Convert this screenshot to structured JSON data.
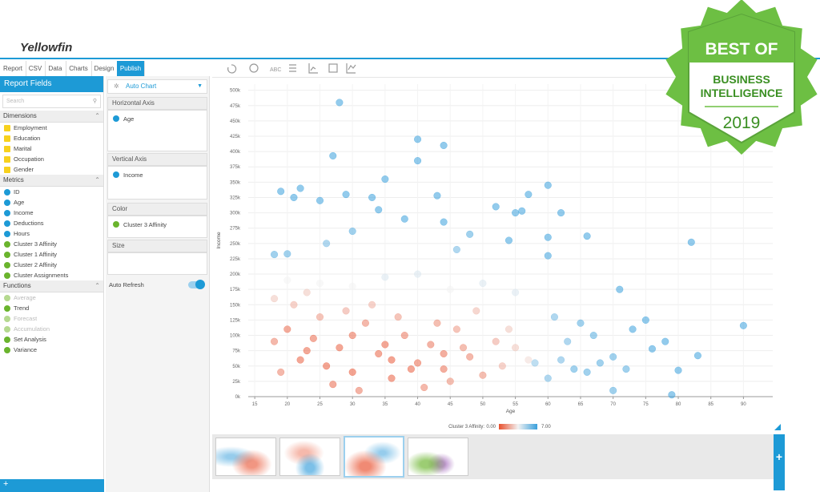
{
  "header": {
    "logo": "Yellowfin",
    "tabs": [
      "Report",
      "CSV",
      "Data",
      "Charts",
      "Design",
      "Publish"
    ],
    "active_tab": 5,
    "toolbar_text": "ABC"
  },
  "fields_panel": {
    "title": "Report Fields",
    "search_placeholder": "Search",
    "sections": [
      {
        "title": "Dimensions",
        "items": [
          {
            "label": "Employment",
            "color": "#f7d11d"
          },
          {
            "label": "Education",
            "color": "#f7d11d"
          },
          {
            "label": "Marital",
            "color": "#f7d11d"
          },
          {
            "label": "Occupation",
            "color": "#f7d11d"
          },
          {
            "label": "Gender",
            "color": "#f7d11d"
          }
        ]
      },
      {
        "title": "Metrics",
        "items": [
          {
            "label": "ID",
            "color": "#1d9ad6"
          },
          {
            "label": "Age",
            "color": "#1d9ad6"
          },
          {
            "label": "Income",
            "color": "#1d9ad6"
          },
          {
            "label": "Deductions",
            "color": "#1d9ad6"
          },
          {
            "label": "Hours",
            "color": "#1d9ad6"
          },
          {
            "label": "Cluster 3 Affinity",
            "color": "#6ab42d"
          },
          {
            "label": "Cluster 1 Affinity",
            "color": "#6ab42d"
          },
          {
            "label": "Cluster 2 Affinity",
            "color": "#6ab42d"
          },
          {
            "label": "Cluster Assignments",
            "color": "#6ab42d"
          }
        ]
      },
      {
        "title": "Functions",
        "items": [
          {
            "label": "Average",
            "color": "#b5d98f"
          },
          {
            "label": "Trend",
            "color": "#6ab42d"
          },
          {
            "label": "Forecast",
            "color": "#b5d98f"
          },
          {
            "label": "Accumulation",
            "color": "#b5d98f"
          },
          {
            "label": "Set Analysis",
            "color": "#6ab42d"
          },
          {
            "label": "Variance",
            "color": "#6ab42d"
          }
        ]
      }
    ]
  },
  "chart_panel": {
    "chart_type": "Auto Chart",
    "horizontal_axis": "Horizontal Axis",
    "horizontal_field": "Age",
    "vertical_axis": "Vertical Axis",
    "vertical_field": "Income",
    "color": "Color",
    "color_field": "Cluster 3 Affinity",
    "size": "Size",
    "auto_refresh": "Auto Refresh"
  },
  "badge": {
    "line1": "BEST OF",
    "line2": "BUSINESS",
    "line3": "INTELLIGENCE",
    "year": "2019"
  },
  "chart_data": {
    "type": "scatter",
    "x_label": "Age",
    "y_label": "Income",
    "grid": true,
    "xlim": [
      14,
      94.5
    ],
    "ylim": [
      0,
      510000
    ],
    "xticks": [
      15,
      20,
      25,
      30,
      35,
      40,
      45,
      50,
      55,
      60,
      65,
      70,
      75,
      80,
      85,
      90
    ],
    "yticks": [
      {
        "value": 0,
        "label": "0k"
      },
      {
        "value": 25000,
        "label": "25k"
      },
      {
        "value": 50000,
        "label": "50k"
      },
      {
        "value": 75000,
        "label": "75k"
      },
      {
        "value": 100000,
        "label": "100k"
      },
      {
        "value": 125000,
        "label": "125k"
      },
      {
        "value": 150000,
        "label": "150k"
      },
      {
        "value": 175000,
        "label": "175k"
      },
      {
        "value": 200000,
        "label": "200k"
      },
      {
        "value": 225000,
        "label": "225k"
      },
      {
        "value": 250000,
        "label": "250k"
      },
      {
        "value": 275000,
        "label": "275k"
      },
      {
        "value": 300000,
        "label": "300k"
      },
      {
        "value": 325000,
        "label": "325k"
      },
      {
        "value": 350000,
        "label": "350k"
      },
      {
        "value": 375000,
        "label": "375k"
      },
      {
        "value": 400000,
        "label": "400k"
      },
      {
        "value": 425000,
        "label": "425k"
      },
      {
        "value": 450000,
        "label": "450k"
      },
      {
        "value": 475000,
        "label": "475k"
      },
      {
        "value": 500000,
        "label": "500k"
      }
    ],
    "color_scale": {
      "title": "Cluster 3 Affinity:",
      "min": {
        "value": 0,
        "label": "0.00"
      },
      "max": {
        "value": 7,
        "label": "7.00"
      },
      "colors": [
        "#e8502e",
        "#f2f2f2",
        "#3aa0dc"
      ]
    },
    "x": [
      28,
      40,
      44,
      27,
      40,
      35,
      60,
      19,
      22,
      29,
      43,
      57,
      21,
      25,
      33,
      52,
      56,
      55,
      62,
      34,
      38,
      44,
      82,
      66,
      54,
      60,
      20,
      18,
      60,
      71,
      90,
      83,
      80,
      75,
      73,
      78,
      76,
      70,
      66,
      62,
      64,
      68,
      72,
      58,
      60,
      79,
      70,
      67,
      63,
      65,
      61,
      48,
      30,
      26,
      46,
      20,
      25,
      30,
      35,
      45,
      50,
      55,
      40,
      20,
      22,
      24,
      26,
      28,
      30,
      32,
      34,
      36,
      38,
      40,
      42,
      44,
      46,
      48,
      50,
      52,
      29,
      33,
      37,
      27,
      31,
      41,
      45,
      25,
      21,
      18,
      19,
      35,
      39,
      43,
      47,
      53,
      49,
      23,
      30,
      36,
      44,
      55,
      57,
      54,
      18,
      23
    ],
    "y": [
      480000,
      420000,
      410000,
      393000,
      385000,
      355000,
      345000,
      335000,
      340000,
      330000,
      328000,
      330000,
      325000,
      320000,
      325000,
      310000,
      303000,
      300000,
      300000,
      305000,
      290000,
      285000,
      252000,
      262000,
      255000,
      260000,
      233000,
      232000,
      230000,
      175000,
      116000,
      67000,
      43000,
      125000,
      110000,
      90000,
      78000,
      65000,
      40000,
      60000,
      45000,
      55000,
      45000,
      55000,
      30000,
      3000,
      10000,
      100000,
      90000,
      120000,
      130000,
      265000,
      270000,
      250000,
      240000,
      190000,
      185000,
      180000,
      195000,
      175000,
      185000,
      170000,
      200000,
      110000,
      60000,
      95000,
      50000,
      80000,
      40000,
      120000,
      70000,
      30000,
      100000,
      55000,
      85000,
      45000,
      110000,
      65000,
      35000,
      90000,
      140000,
      150000,
      130000,
      20000,
      10000,
      15000,
      25000,
      130000,
      150000,
      90000,
      40000,
      85000,
      45000,
      120000,
      80000,
      50000,
      140000,
      75000,
      100000,
      60000,
      70000,
      80000,
      60000,
      110000,
      160000,
      170000
    ],
    "color_values": [
      7,
      7,
      7,
      7,
      7,
      7,
      7,
      7,
      7,
      7,
      7,
      7,
      7,
      7,
      7,
      7,
      7,
      7,
      7,
      7,
      7,
      7,
      7,
      7,
      7,
      7,
      6.5,
      6.5,
      7,
      7,
      7,
      7,
      7,
      7,
      7,
      7,
      7,
      6.5,
      6.5,
      6,
      6.5,
      6.5,
      6.5,
      5.5,
      6,
      7,
      6.5,
      6.5,
      6,
      6.5,
      6,
      6.5,
      6.5,
      6,
      6,
      3.5,
      3.5,
      3.5,
      4,
      3.5,
      4,
      4,
      4,
      0.5,
      0.3,
      0.5,
      0.2,
      0.3,
      0.2,
      1,
      0.4,
      0.3,
      0.8,
      0.5,
      0.8,
      0.6,
      1.5,
      1,
      1.2,
      1.8,
      1.8,
      2,
      1.5,
      0.5,
      0.8,
      1,
      1.2,
      1.5,
      2,
      1,
      1,
      0.3,
      0.3,
      1.2,
      1.2,
      2,
      2.2,
      0.4,
      0.5,
      0.2,
      0.6,
      2.5,
      3,
      2.5,
      2.5,
      2.5
    ]
  }
}
